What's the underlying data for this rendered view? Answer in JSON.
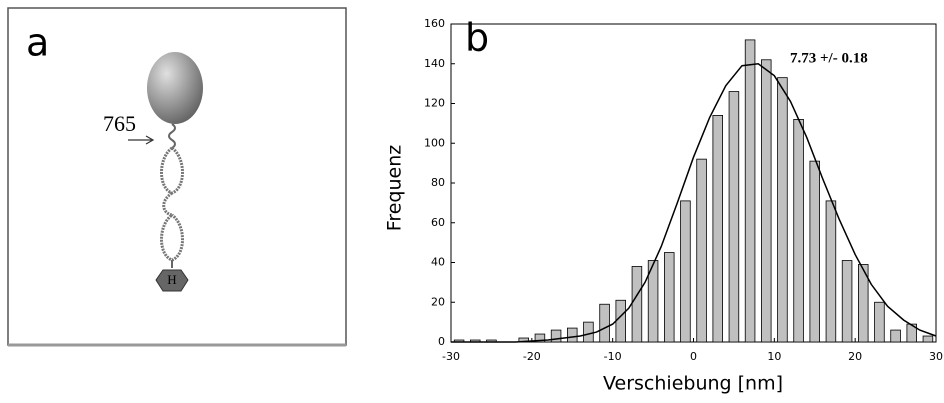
{
  "panel_a": {
    "label": "a",
    "marker": "765",
    "domain_label": "H"
  },
  "chart_data": {
    "type": "histogram",
    "panel_label": "b",
    "x_label": "Verschiebung [nm]",
    "y_label": "Frequenz",
    "annotation": "7.73 +/- 0.18",
    "bins": [
      -30,
      -28,
      -26,
      -24,
      -22,
      -20,
      -18,
      -16,
      -14,
      -12,
      -10,
      -8,
      -6,
      -4,
      -2,
      0,
      2,
      4,
      6,
      8,
      10,
      12,
      14,
      16,
      18,
      20,
      22,
      24,
      26,
      28,
      30
    ],
    "values": [
      1,
      1,
      1,
      0,
      2,
      4,
      6,
      7,
      10,
      19,
      21,
      38,
      41,
      45,
      71,
      92,
      114,
      126,
      152,
      142,
      133,
      112,
      91,
      71,
      41,
      39,
      20,
      6,
      9,
      3
    ],
    "color": "#c0c0c0",
    "fit": {
      "x": [
        -30,
        -28,
        -26,
        -24,
        -22,
        -20,
        -18,
        -16,
        -14,
        -12,
        -10,
        -8,
        -6,
        -4,
        -2,
        0,
        2,
        4,
        6,
        8,
        10,
        12,
        14,
        16,
        18,
        20,
        22,
        24,
        26,
        28,
        30
      ],
      "values": [
        0,
        0,
        0,
        0,
        0,
        0.5,
        1,
        2,
        3,
        5,
        9,
        17,
        30,
        48,
        70,
        93,
        113,
        129,
        139,
        140,
        134,
        121,
        103,
        82,
        62,
        44,
        29,
        18,
        11,
        6,
        3
      ]
    },
    "xlim": [
      -30,
      30
    ],
    "xticks": [
      -30,
      -20,
      -10,
      0,
      10,
      20,
      30
    ],
    "ylim": [
      0,
      160
    ],
    "yticks": [
      0,
      20,
      40,
      60,
      80,
      100,
      120,
      140,
      160
    ]
  }
}
